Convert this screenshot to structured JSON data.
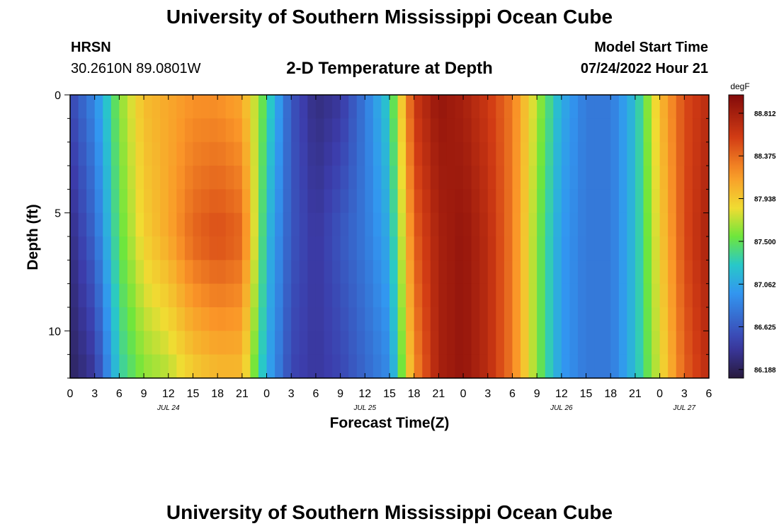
{
  "header": {
    "title": "University of Southern Mississippi Ocean Cube",
    "station": "HRSN",
    "coords": "30.2610N  89.0801W",
    "plot_title": "2-D Temperature at Depth",
    "model_start_label": "Model Start Time",
    "model_start_value": "07/24/2022 Hour 21"
  },
  "footer": {
    "title": "University of Southern Mississippi Ocean Cube"
  },
  "chart_data": {
    "type": "heatmap",
    "title": "2-D Temperature at Depth",
    "xlabel": "Forecast Time(Z)",
    "ylabel": "Depth (ft)",
    "x_range_hours_from_jul24_00z": [
      0,
      78
    ],
    "x_tick_labels": [
      "0",
      "3",
      "6",
      "9",
      "12",
      "15",
      "18",
      "21",
      "0",
      "3",
      "6",
      "9",
      "12",
      "15",
      "18",
      "21",
      "0",
      "3",
      "6",
      "9",
      "12",
      "15",
      "18",
      "21",
      "0",
      "3",
      "6"
    ],
    "date_labels": [
      {
        "label": "JUL 24",
        "hour": 12
      },
      {
        "label": "JUL 25",
        "hour": 36
      },
      {
        "label": "JUL 26",
        "hour": 60
      },
      {
        "label": "JUL 27",
        "hour": 75
      }
    ],
    "y_ticks": [
      0,
      5,
      10
    ],
    "y_range": [
      0,
      12
    ],
    "y_inverted": true,
    "colorbar": {
      "unit": "degF",
      "ticks": [
        86.188,
        86.625,
        87.062,
        87.5,
        87.938,
        88.375,
        88.812
      ],
      "min": 86.1,
      "max": 89.0
    },
    "time_hours": [
      0,
      3,
      6,
      9,
      12,
      15,
      18,
      21,
      24,
      27,
      30,
      33,
      36,
      39,
      42,
      45,
      48,
      51,
      54,
      57,
      60,
      63,
      66,
      69,
      72,
      75,
      78
    ],
    "depth_ft": [
      0,
      6,
      12
    ],
    "temperature_degF": [
      [
        86.5,
        86.9,
        87.6,
        88.0,
        88.1,
        88.2,
        88.2,
        88.1,
        87.4,
        86.6,
        86.3,
        86.4,
        86.8,
        87.3,
        88.6,
        88.9,
        88.8,
        88.6,
        88.3,
        87.7,
        87.1,
        86.8,
        86.8,
        87.2,
        88.0,
        88.5,
        88.7
      ],
      [
        86.3,
        86.7,
        87.5,
        87.9,
        88.1,
        88.4,
        88.5,
        88.4,
        87.2,
        86.6,
        86.4,
        86.6,
        86.8,
        87.1,
        88.4,
        88.8,
        88.9,
        88.7,
        88.3,
        87.6,
        87.0,
        86.8,
        86.8,
        87.2,
        87.9,
        88.5,
        88.8
      ],
      [
        86.2,
        86.4,
        87.3,
        87.6,
        87.7,
        87.9,
        88.0,
        88.0,
        87.1,
        86.5,
        86.4,
        86.5,
        86.7,
        86.9,
        88.2,
        88.8,
        88.9,
        88.7,
        88.3,
        87.6,
        87.0,
        86.8,
        86.8,
        87.2,
        87.8,
        88.4,
        88.7
      ]
    ]
  }
}
